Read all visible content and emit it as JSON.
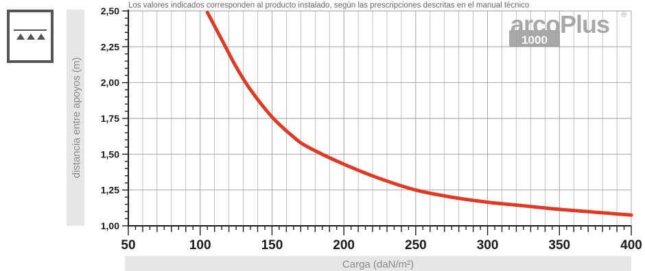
{
  "note": "Los valores indicados corresponden al producto instalado, según las prescripciones descritas en el manual técnico",
  "logo": {
    "text_main": "arcoPlus",
    "text_sub": "1000",
    "registered": "®"
  },
  "colors": {
    "line": "#e03a24",
    "axis_label_bg": "#e6e6e6",
    "grid": "#9a9a9a",
    "axis": "#1a1a1a",
    "text": "#1a1a1a",
    "label_text": "#8a8a8a",
    "logo_gray": "#a8a8a8"
  },
  "icon": {
    "name": "distributed-load-icon"
  },
  "chart_data": {
    "type": "line",
    "title": "",
    "xlabel": "Carga (daN/m²)",
    "ylabel": "distancia entre apoyos (m)",
    "xlim": [
      50,
      400
    ],
    "ylim": [
      1.0,
      2.5
    ],
    "x_ticks": [
      50,
      100,
      150,
      200,
      250,
      300,
      350,
      400
    ],
    "x_tick_labels": [
      "50",
      "100",
      "150",
      "200",
      "250",
      "300",
      "350",
      "400"
    ],
    "y_ticks": [
      1.0,
      1.25,
      1.5,
      1.75,
      2.0,
      2.25,
      2.5
    ],
    "y_tick_labels": [
      "1,00",
      "1,25",
      "1,50",
      "1,75",
      "2,00",
      "2,25",
      "2,50"
    ],
    "grid": true,
    "series": [
      {
        "x": [
          105,
          115,
          125,
          135,
          150,
          165,
          175,
          200,
          225,
          250,
          275,
          300,
          325,
          350,
          375,
          400
        ],
        "y": [
          2.49,
          2.3,
          2.11,
          1.95,
          1.76,
          1.62,
          1.55,
          1.43,
          1.33,
          1.25,
          1.2,
          1.165,
          1.14,
          1.115,
          1.095,
          1.075
        ]
      }
    ]
  }
}
